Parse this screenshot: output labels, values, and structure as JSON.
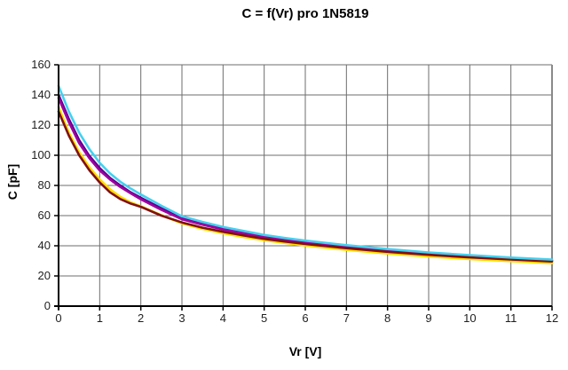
{
  "page": {
    "background": "#ffffff"
  },
  "chart_data": {
    "type": "line",
    "title": "C = f(Vr) pro 1N5819",
    "xlabel": "Vr [V]",
    "ylabel": "C [pF]",
    "xlim": [
      0,
      12
    ],
    "ylim": [
      0,
      160
    ],
    "xticks": [
      0,
      1,
      2,
      3,
      4,
      5,
      6,
      7,
      8,
      9,
      10,
      11,
      12
    ],
    "yticks": [
      0,
      20,
      40,
      60,
      80,
      100,
      120,
      140,
      160
    ],
    "grid": true,
    "legend": "none",
    "grid_color": "#6e6e6e",
    "axis_color": "#000000",
    "border_color": "#8a8a8a",
    "x": [
      0,
      0.25,
      0.5,
      0.75,
      1,
      1.25,
      1.5,
      1.75,
      2,
      2.5,
      3,
      3.5,
      4,
      4.5,
      5,
      5.5,
      6,
      7,
      8,
      9,
      10,
      11,
      12
    ],
    "series": [
      {
        "name": "violet",
        "color": "#520090",
        "values": [
          140,
          124,
          110,
          99.5,
          91.5,
          85,
          80,
          75.5,
          71.8,
          64.8,
          58.3,
          54.6,
          51.4,
          48.7,
          46.2,
          44.3,
          42.6,
          39.7,
          37.2,
          35.1,
          33.3,
          31.7,
          30.3
        ]
      },
      {
        "name": "magenta",
        "color": "#a0009e",
        "values": [
          138,
          122,
          108,
          98,
          90,
          84,
          79,
          74.8,
          70.8,
          63.8,
          57.6,
          54,
          50.8,
          48.1,
          45.7,
          43.8,
          42.1,
          39.2,
          36.8,
          34.7,
          32.9,
          31.3,
          29.9
        ]
      },
      {
        "name": "yellow",
        "color": "#ffdd00",
        "values": [
          132,
          115,
          102,
          92,
          84,
          77.5,
          72.5,
          68.8,
          66.2,
          60.3,
          54.8,
          51.2,
          48.3,
          45.8,
          43.7,
          41.9,
          40.2,
          37.3,
          34.9,
          32.9,
          31.2,
          29.8,
          28.5
        ]
      },
      {
        "name": "dark-red",
        "color": "#801010",
        "values": [
          129,
          113,
          100,
          90,
          82,
          75.5,
          71,
          68,
          65.8,
          60,
          55.5,
          52,
          49.3,
          46.8,
          44.6,
          42.8,
          41.2,
          38.4,
          36,
          34,
          32.3,
          30.9,
          29.6
        ]
      },
      {
        "name": "cyan",
        "color": "#45d0ee",
        "values": [
          146,
          129,
          115,
          104,
          95,
          88,
          82.5,
          78,
          74,
          66.5,
          59.5,
          55.8,
          52.5,
          49.8,
          47.2,
          45.2,
          43.4,
          40.4,
          37.8,
          35.6,
          33.8,
          32.2,
          30.8
        ]
      }
    ]
  }
}
